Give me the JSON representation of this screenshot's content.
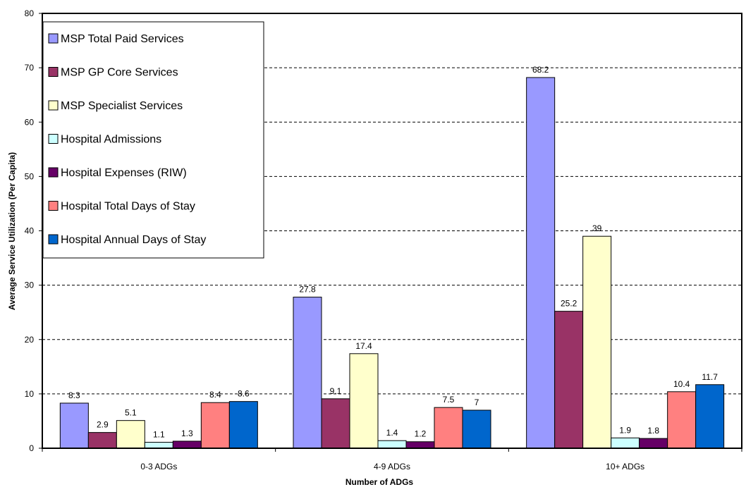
{
  "chart_data": {
    "type": "bar",
    "xlabel": "Number of ADGs",
    "ylabel": "Average Service Utilization (Per Capita)",
    "ylim": [
      0,
      80
    ],
    "yticks": [
      0,
      10,
      20,
      30,
      40,
      50,
      60,
      70,
      80
    ],
    "grid": "horizontal dashed",
    "legend_position": "top-left",
    "categories": [
      "0-3 ADGs",
      "4-9 ADGs",
      "10+ ADGs"
    ],
    "series": [
      {
        "name": "MSP Total Paid Services",
        "color": "#9999ff",
        "values": [
          8.3,
          27.8,
          68.2
        ],
        "labels": [
          "8.3",
          "27.8",
          "68.2"
        ]
      },
      {
        "name": "MSP GP Core Services",
        "color": "#993366",
        "values": [
          2.9,
          9.1,
          25.2
        ],
        "labels": [
          "2.9",
          "9.1",
          "25.2"
        ]
      },
      {
        "name": "MSP Specialist Services",
        "color": "#ffffcc",
        "values": [
          5.1,
          17.4,
          39
        ],
        "labels": [
          "5.1",
          "17.4",
          "39"
        ]
      },
      {
        "name": "Hospital Admissions",
        "color": "#ccffff",
        "values": [
          1.1,
          1.4,
          1.9
        ],
        "labels": [
          "1.1",
          "1.4",
          "1.9"
        ]
      },
      {
        "name": "Hospital Expenses (RIW)",
        "color": "#660066",
        "values": [
          1.3,
          1.2,
          1.8
        ],
        "labels": [
          "1.3",
          "1.2",
          "1.8"
        ]
      },
      {
        "name": "Hospital Total Days of Stay",
        "color": "#ff8080",
        "values": [
          8.4,
          7.5,
          10.4
        ],
        "labels": [
          "8.4",
          "7.5",
          "10.4"
        ]
      },
      {
        "name": "Hospital Annual Days of Stay",
        "color": "#0066cc",
        "values": [
          8.6,
          7,
          11.7
        ],
        "labels": [
          "8.6",
          "7",
          "11.7"
        ]
      }
    ]
  }
}
